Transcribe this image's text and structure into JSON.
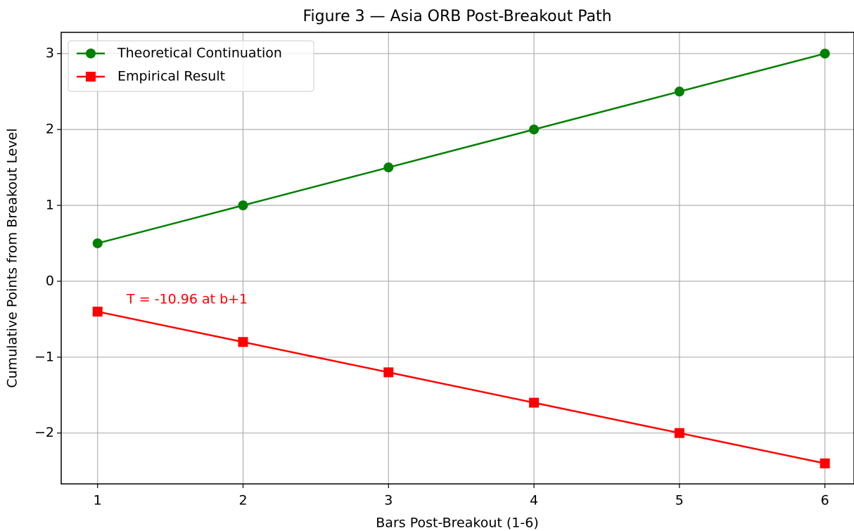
{
  "chart_data": {
    "type": "line",
    "title": "Figure 3 — Asia ORB Post-Breakout Path",
    "xlabel": "Bars Post-Breakout (1-6)",
    "ylabel": "Cumulative Points from Breakout Level",
    "x": [
      1,
      2,
      3,
      4,
      5,
      6
    ],
    "series": [
      {
        "name": "Theoretical Continuation",
        "color": "#008000",
        "marker": "circle",
        "values": [
          0.5,
          1,
          1.5,
          2,
          2.5,
          3
        ]
      },
      {
        "name": "Empirical Result",
        "color": "#ff0000",
        "marker": "square",
        "values": [
          -0.4,
          -0.8,
          -1.2,
          -1.6,
          -2,
          -2.4
        ]
      }
    ],
    "xlim": [
      0.75,
      6.2
    ],
    "xticks": [
      1,
      2,
      3,
      4,
      5,
      6
    ],
    "ylim": [
      -2.67,
      3.28
    ],
    "yticks": [
      {
        "value": -2,
        "label": "−2"
      },
      {
        "value": -1,
        "label": "−1"
      },
      0,
      1,
      2,
      3
    ],
    "grid": true,
    "legend": "upper left",
    "annotations": [
      {
        "text": "T = -10.96 at b+1",
        "x": 1.2,
        "y": -0.24,
        "color": "#ff0000"
      }
    ]
  }
}
